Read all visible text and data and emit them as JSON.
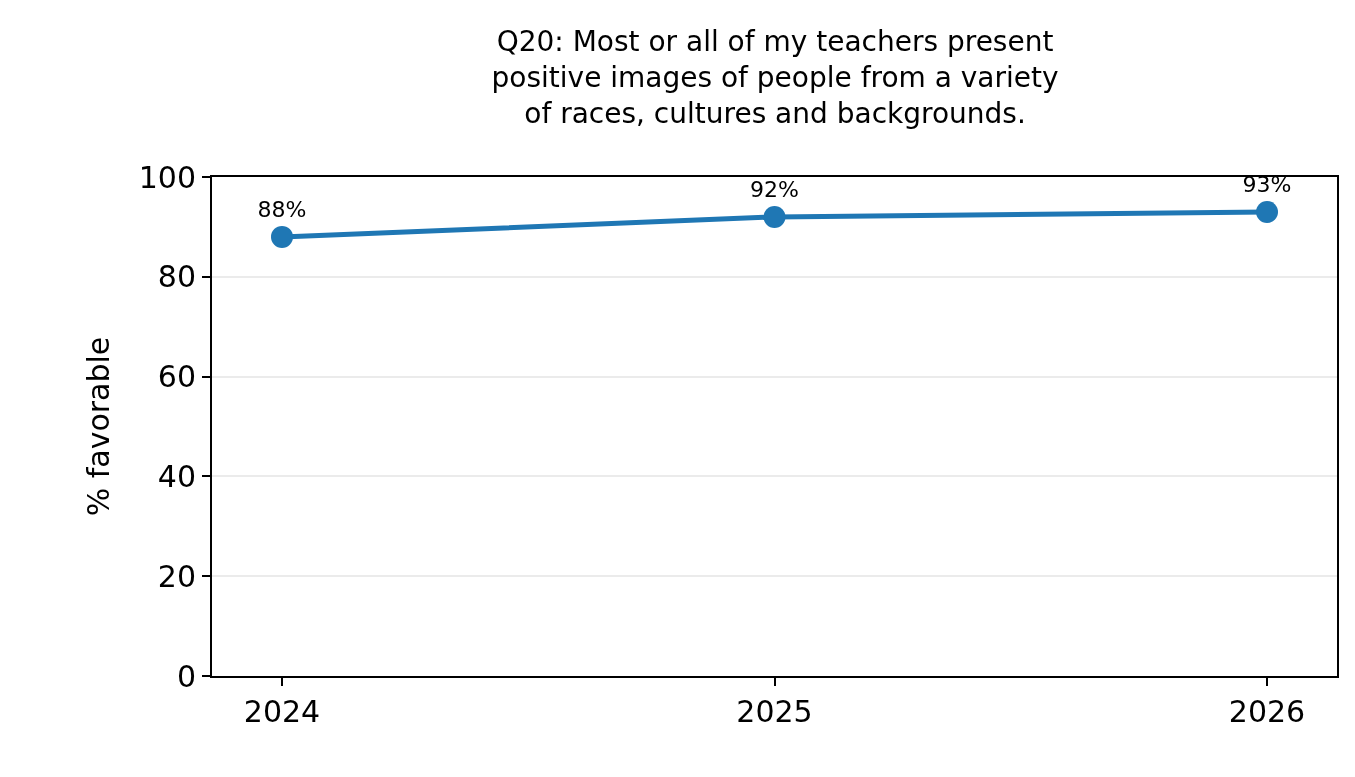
{
  "chart_data": {
    "type": "line",
    "title": "Q20: Most or all of my teachers present\npositive images of people from a variety\nof races, cultures and backgrounds.",
    "ylabel": "% favorable",
    "categories": [
      "2024",
      "2025",
      "2026"
    ],
    "series": [
      {
        "color": "#1f77b4",
        "values": [
          88,
          92,
          93
        ],
        "value_labels": [
          "88%",
          "92%",
          "93%"
        ]
      }
    ],
    "ylim": [
      0,
      100
    ],
    "yticks": [
      0,
      20,
      40,
      60,
      80,
      100
    ],
    "grid": "y",
    "marker": "circle",
    "line_style": "solid"
  }
}
